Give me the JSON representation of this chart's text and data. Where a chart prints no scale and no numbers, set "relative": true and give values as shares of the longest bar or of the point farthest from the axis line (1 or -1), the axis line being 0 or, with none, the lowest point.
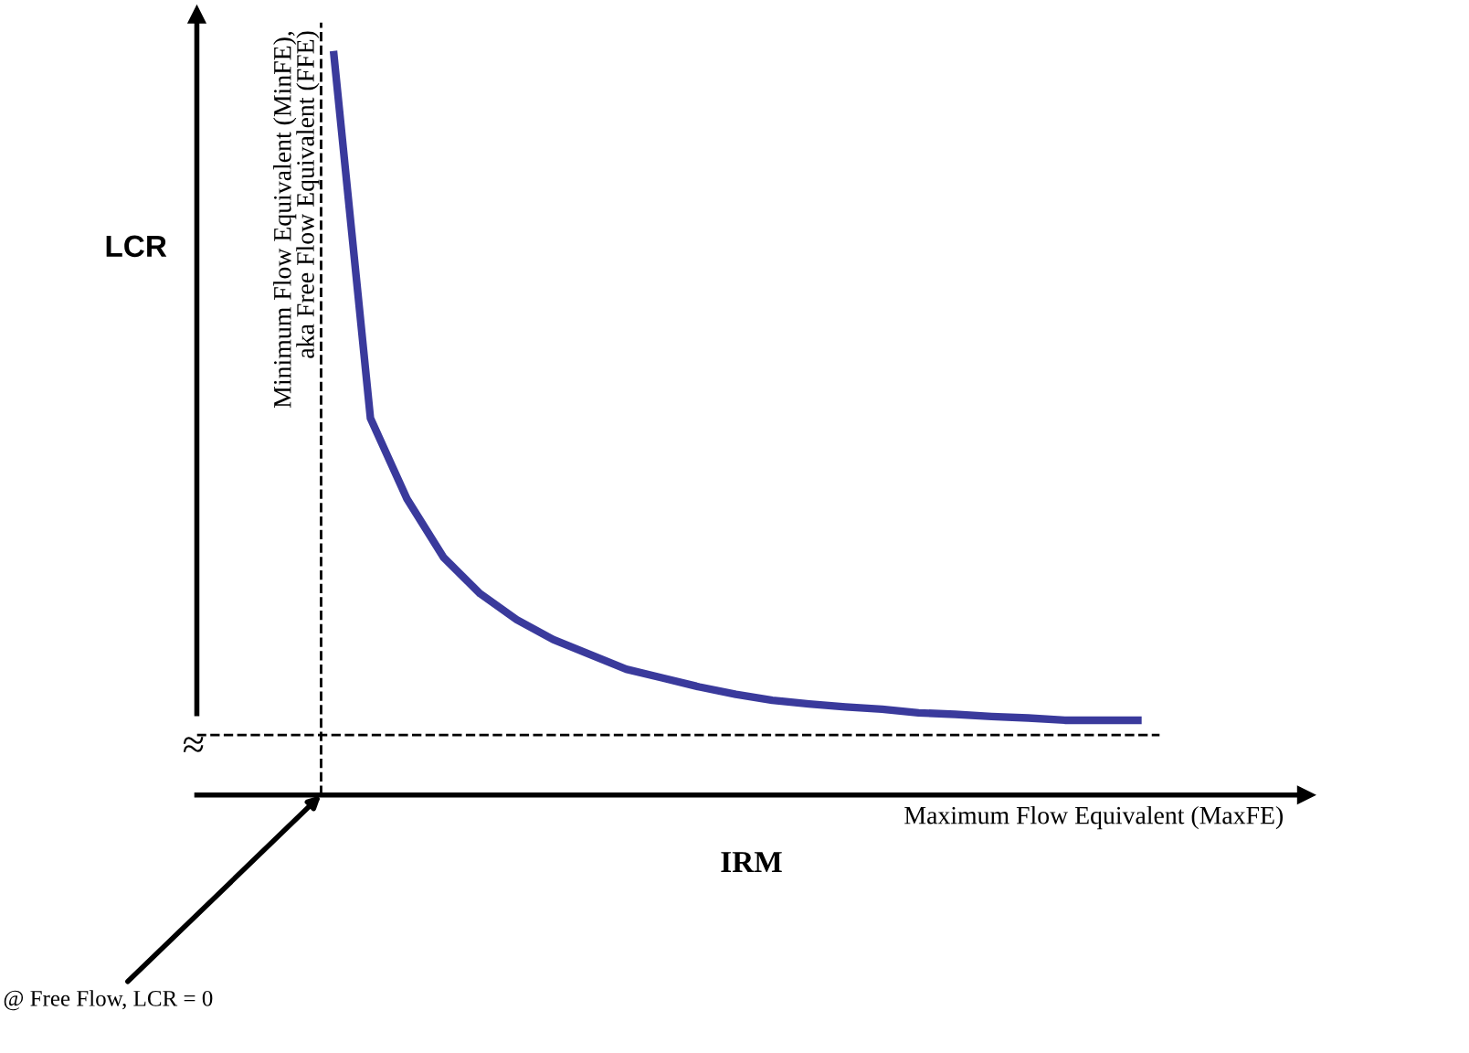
{
  "chart_data": {
    "type": "line",
    "relative": true,
    "xlabel": "IRM",
    "ylabel": "LCR",
    "tick_labels": false,
    "marker": "none",
    "line_style": "solid",
    "categories": [
      null,
      null,
      null,
      null,
      null,
      null,
      null,
      null,
      null,
      null,
      null,
      null,
      null,
      null,
      null,
      null,
      null,
      null,
      null,
      null,
      null,
      null,
      null
    ],
    "series": [
      {
        "color": "#3a3a9c",
        "values": [
          1.0,
          0.509,
          0.4,
          0.321,
          0.272,
          0.237,
          0.21,
          0.19,
          0.17,
          0.158,
          0.146,
          0.136,
          0.128,
          0.123,
          0.119,
          0.116,
          0.111,
          0.109,
          0.106,
          0.104,
          0.101,
          0.101,
          0.101
        ]
      }
    ],
    "ref_lines": [
      {
        "axis": "x",
        "label": "Minimum Flow Equivalent (MinFE),\naka Free Flow Equivalent (FFE)",
        "color": "#000000",
        "line_style": "dashed"
      },
      {
        "axis": "y",
        "value": 0.081,
        "label": "Maximum Flow Equivalent (MaxFE)",
        "color": "#000000",
        "line_style": "dashed"
      }
    ],
    "annotations": [
      "@ Free Flow, LCR = 0",
      "≈"
    ]
  }
}
